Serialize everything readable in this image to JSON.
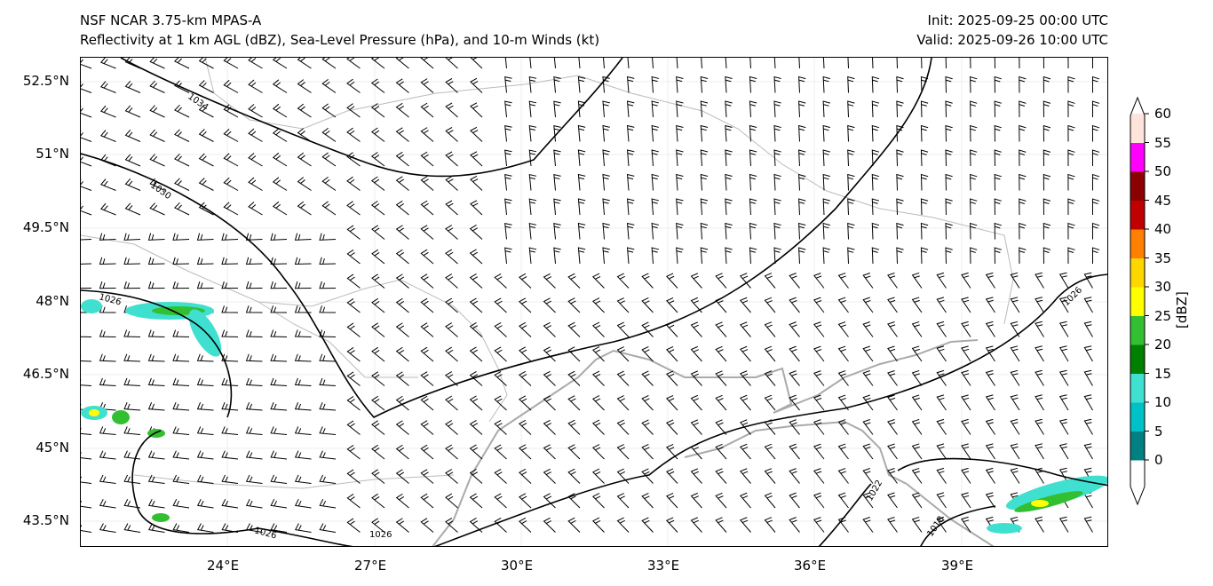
{
  "header": {
    "model": "NSF NCAR 3.75-km MPAS-A",
    "subtitle": "Reflectivity at 1 km AGL (dBZ), Sea-Level Pressure (hPa), and 10-m Winds (kt)",
    "init": "Init: 2025-09-25 00:00 UTC",
    "valid": "Valid: 2025-09-26 10:00 UTC"
  },
  "axes": {
    "lat_labels": [
      "52.5°N",
      "51°N",
      "49.5°N",
      "48°N",
      "46.5°N",
      "45°N",
      "43.5°N"
    ],
    "lon_labels": [
      "24°E",
      "27°E",
      "30°E",
      "33°E",
      "36°E",
      "39°E"
    ]
  },
  "contour_labels": [
    "1034",
    "1030",
    "1026",
    "1026",
    "1026",
    "1026",
    "1022",
    "1018"
  ],
  "colorbar": {
    "label": "[dBZ]",
    "ticks": [
      "0",
      "5",
      "10",
      "15",
      "20",
      "25",
      "30",
      "35",
      "40",
      "45",
      "50",
      "55",
      "60"
    ],
    "colors": [
      "#008080",
      "#00c0c8",
      "#40e0d0",
      "#008000",
      "#32c032",
      "#ffff00",
      "#ffd700",
      "#ff8000",
      "#c00000",
      "#8b0000",
      "#ff00ff",
      "#ffe4dc"
    ]
  }
}
